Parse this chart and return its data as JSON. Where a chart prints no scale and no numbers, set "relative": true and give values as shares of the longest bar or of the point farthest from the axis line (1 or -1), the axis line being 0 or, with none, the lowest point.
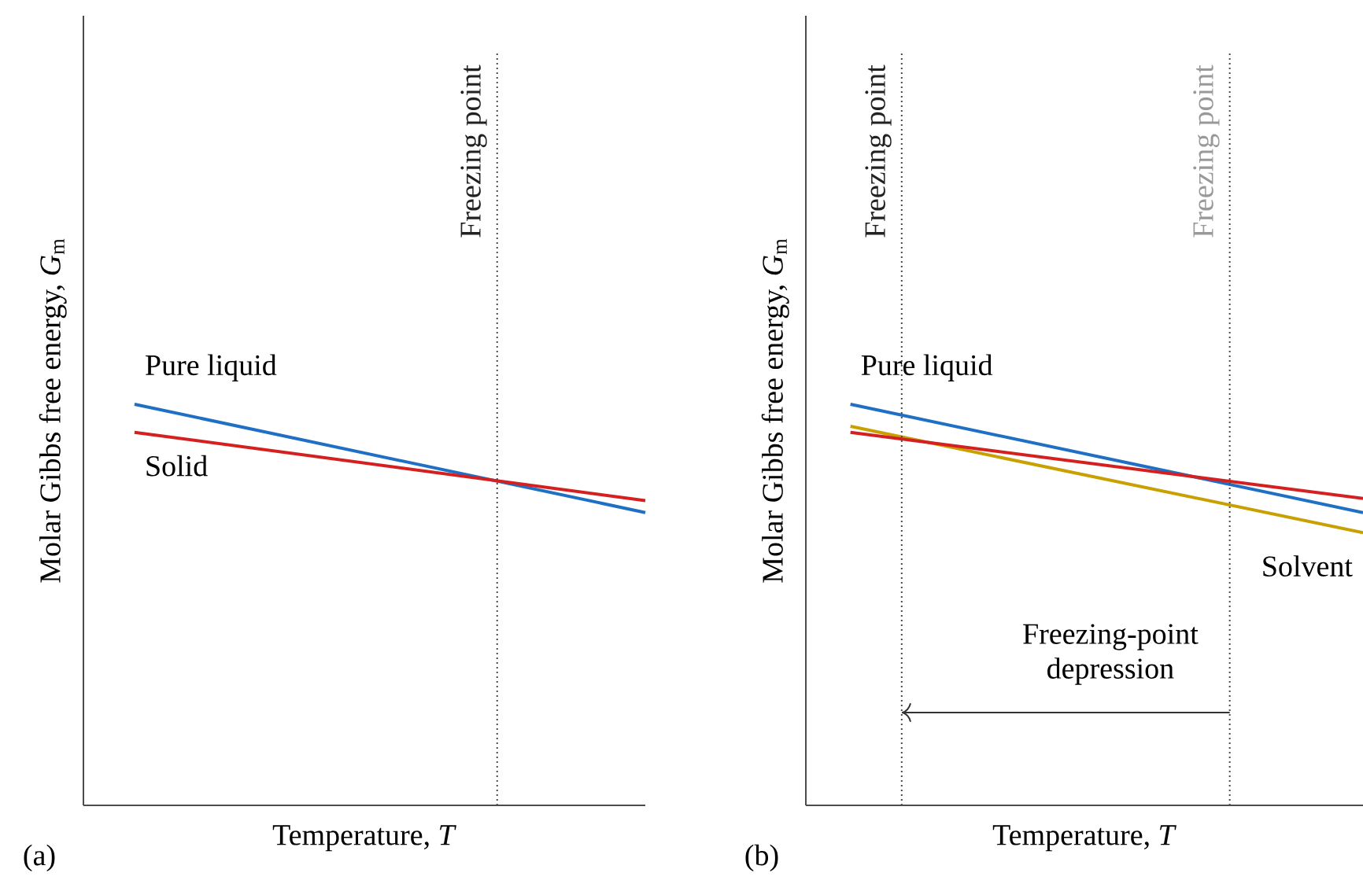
{
  "chart_data": [
    {
      "type": "line",
      "title": "(a)",
      "xlabel": "Temperature, *T*",
      "ylabel": "Molar Gibbs free energy, *G*$_{m}$",
      "relative": true,
      "categories": [
        null,
        null
      ],
      "series": [
        {
          "name": "Pure liquid",
          "color": "#1f6fc5",
          "values": [
            1.0,
            0.73
          ]
        },
        {
          "name": "Solid",
          "color": "#d42020",
          "values": [
            0.93,
            0.76
          ]
        }
      ],
      "annotations": [
        "Freezing point"
      ]
    },
    {
      "type": "line",
      "title": "(b)",
      "xlabel": "Temperature, *T*",
      "ylabel": "Molar Gibbs free energy, *G*$_{m}$",
      "relative": true,
      "categories": [
        null,
        null
      ],
      "series": [
        {
          "name": "Pure liquid",
          "color": "#1f6fc5",
          "values": [
            1.0,
            0.73
          ]
        },
        {
          "name": "Solvent",
          "color": "#c8a000",
          "values": [
            0.945,
            0.68
          ]
        },
        {
          "color": "#d42020",
          "values": [
            0.93,
            0.765
          ]
        }
      ],
      "annotations": [
        "Freezing point",
        "Freezing point",
        "Freezing-point depression"
      ]
    }
  ]
}
